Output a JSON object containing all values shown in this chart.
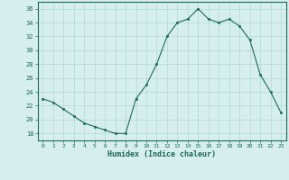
{
  "x": [
    0,
    1,
    2,
    3,
    4,
    5,
    6,
    7,
    8,
    9,
    10,
    11,
    12,
    13,
    14,
    15,
    16,
    17,
    18,
    19,
    20,
    21,
    22,
    23
  ],
  "y": [
    23,
    22.5,
    21.5,
    20.5,
    19.5,
    19,
    18.5,
    18,
    18,
    23,
    25,
    28,
    32,
    34,
    34.5,
    36,
    34.5,
    34,
    34.5,
    33.5,
    31.5,
    26.5,
    24,
    21
  ],
  "xlabel": "Humidex (Indice chaleur)",
  "ylim": [
    17,
    37
  ],
  "xlim": [
    -0.5,
    23.5
  ],
  "yticks": [
    18,
    20,
    22,
    24,
    26,
    28,
    30,
    32,
    34,
    36
  ],
  "xticks": [
    0,
    1,
    2,
    3,
    4,
    5,
    6,
    7,
    8,
    9,
    10,
    11,
    12,
    13,
    14,
    15,
    16,
    17,
    18,
    19,
    20,
    21,
    22,
    23
  ],
  "line_color": "#1a6b5a",
  "marker_color": "#1a6b5a",
  "bg_color": "#d6eeee",
  "grid_color": "#b0d8d8",
  "spine_color": "#1a6b5a",
  "figsize": [
    3.2,
    2.0
  ],
  "dpi": 100
}
